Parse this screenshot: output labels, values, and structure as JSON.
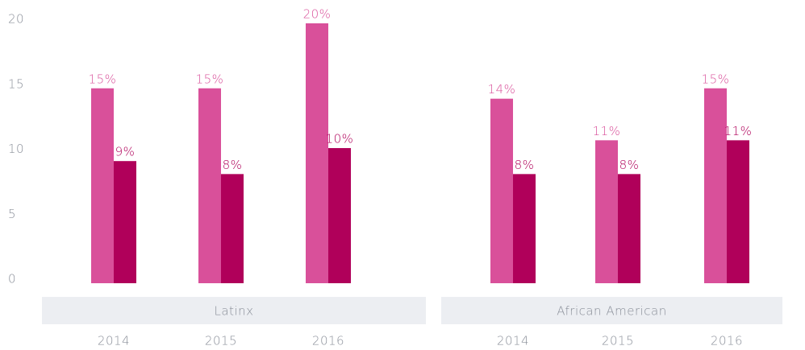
{
  "chart_data": {
    "type": "bar",
    "groups": [
      {
        "label": "Latinx",
        "categories": [
          "2014",
          "2015",
          "2016"
        ]
      },
      {
        "label": "African American",
        "categories": [
          "2014",
          "2015",
          "2016"
        ]
      }
    ],
    "series": [
      {
        "color": "#d9509a",
        "values": [
          15,
          15,
          20,
          14.2,
          11,
          15
        ],
        "value_labels": [
          "15%",
          "15%",
          "20%",
          "14%",
          "11%",
          "15%"
        ]
      },
      {
        "color": "#b0005a",
        "values": [
          9.4,
          8.4,
          10.4,
          8.4,
          8.4,
          11
        ],
        "value_labels": [
          "9%",
          "8%",
          "10%",
          "8%",
          "8%",
          "11%"
        ]
      }
    ],
    "ylim": [
      0,
      20
    ],
    "yticks": [
      0,
      5,
      10,
      15,
      20
    ],
    "grid": false
  }
}
